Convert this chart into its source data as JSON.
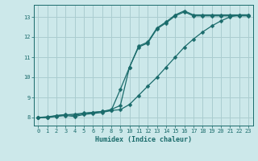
{
  "xlabel": "Humidex (Indice chaleur)",
  "ylabel": "",
  "bg_color": "#cce8ea",
  "grid_color": "#aacdd0",
  "line_color": "#1a6b6b",
  "xlim": [
    -0.5,
    23.5
  ],
  "ylim": [
    7.6,
    13.6
  ],
  "xticks": [
    0,
    1,
    2,
    3,
    4,
    5,
    6,
    7,
    8,
    9,
    10,
    11,
    12,
    13,
    14,
    15,
    16,
    17,
    18,
    19,
    20,
    21,
    22,
    23
  ],
  "yticks": [
    8,
    9,
    10,
    11,
    12,
    13
  ],
  "line1_x": [
    0,
    1,
    2,
    3,
    4,
    5,
    6,
    7,
    8,
    9,
    10,
    11,
    12,
    13,
    14,
    15,
    16,
    17,
    18,
    19,
    20,
    21,
    22,
    23
  ],
  "line1_y": [
    8.0,
    8.0,
    8.1,
    8.15,
    8.1,
    8.2,
    8.25,
    8.3,
    8.4,
    8.6,
    10.5,
    11.5,
    11.7,
    12.4,
    12.7,
    13.05,
    13.25,
    13.05,
    13.05,
    13.05,
    13.05,
    13.05,
    13.05,
    13.05
  ],
  "line2_x": [
    0,
    1,
    2,
    3,
    4,
    5,
    6,
    7,
    8,
    9,
    10,
    11,
    12,
    13,
    14,
    15,
    16,
    17,
    18,
    19,
    20,
    21,
    22,
    23
  ],
  "line2_y": [
    8.0,
    8.0,
    8.05,
    8.1,
    8.05,
    8.15,
    8.2,
    8.25,
    8.35,
    9.4,
    10.5,
    11.55,
    11.75,
    12.45,
    12.75,
    13.1,
    13.3,
    13.1,
    13.1,
    13.1,
    13.1,
    13.1,
    13.1,
    13.1
  ],
  "line3_x": [
    0,
    1,
    2,
    3,
    4,
    5,
    6,
    7,
    8,
    9,
    10,
    11,
    12,
    13,
    14,
    15,
    16,
    17,
    18,
    19,
    20,
    21,
    22,
    23
  ],
  "line3_y": [
    8.0,
    8.04,
    8.09,
    8.13,
    8.17,
    8.22,
    8.26,
    8.3,
    8.35,
    8.39,
    8.65,
    9.1,
    9.56,
    10.0,
    10.5,
    11.0,
    11.5,
    11.9,
    12.25,
    12.55,
    12.8,
    13.0,
    13.1,
    13.1
  ]
}
